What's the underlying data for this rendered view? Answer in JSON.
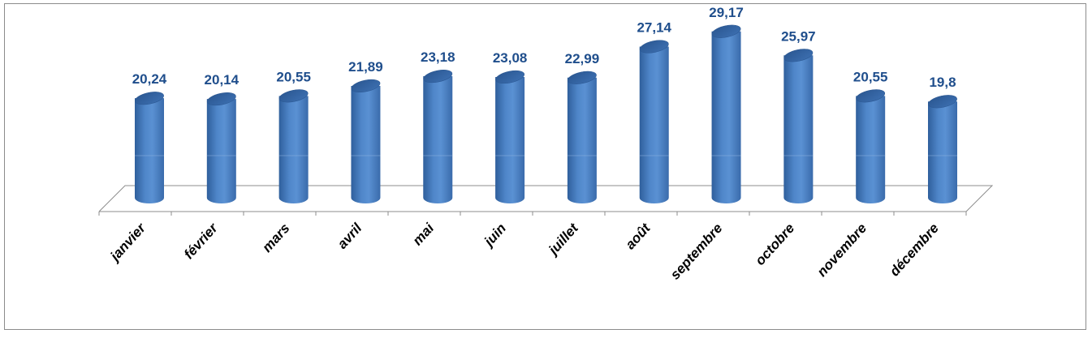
{
  "chart_data": {
    "type": "bar",
    "style": "3d-cylinder",
    "categories": [
      "janvier",
      "février",
      "mars",
      "avril",
      "mai",
      "juin",
      "juillet",
      "août",
      "septembre",
      "octobre",
      "novembre",
      "décembre"
    ],
    "values": [
      20.24,
      20.14,
      20.55,
      21.89,
      23.18,
      23.08,
      22.99,
      27.14,
      29.17,
      25.97,
      20.55,
      19.8
    ],
    "value_labels": [
      "20,24",
      "20,14",
      "20,55",
      "21,89",
      "23,18",
      "23,08",
      "22,99",
      "27,14",
      "29,17",
      "25,97",
      "20,55",
      "19,8"
    ],
    "title": "",
    "xlabel": "",
    "ylabel": "",
    "grid": false,
    "legend": "none",
    "colors": {
      "bar": "#4a7ebf",
      "bar_dark": "#2c5a94",
      "bar_light": "#7ea8dc",
      "label": "#1f4e8c",
      "floor": "#8c8c8c"
    }
  }
}
